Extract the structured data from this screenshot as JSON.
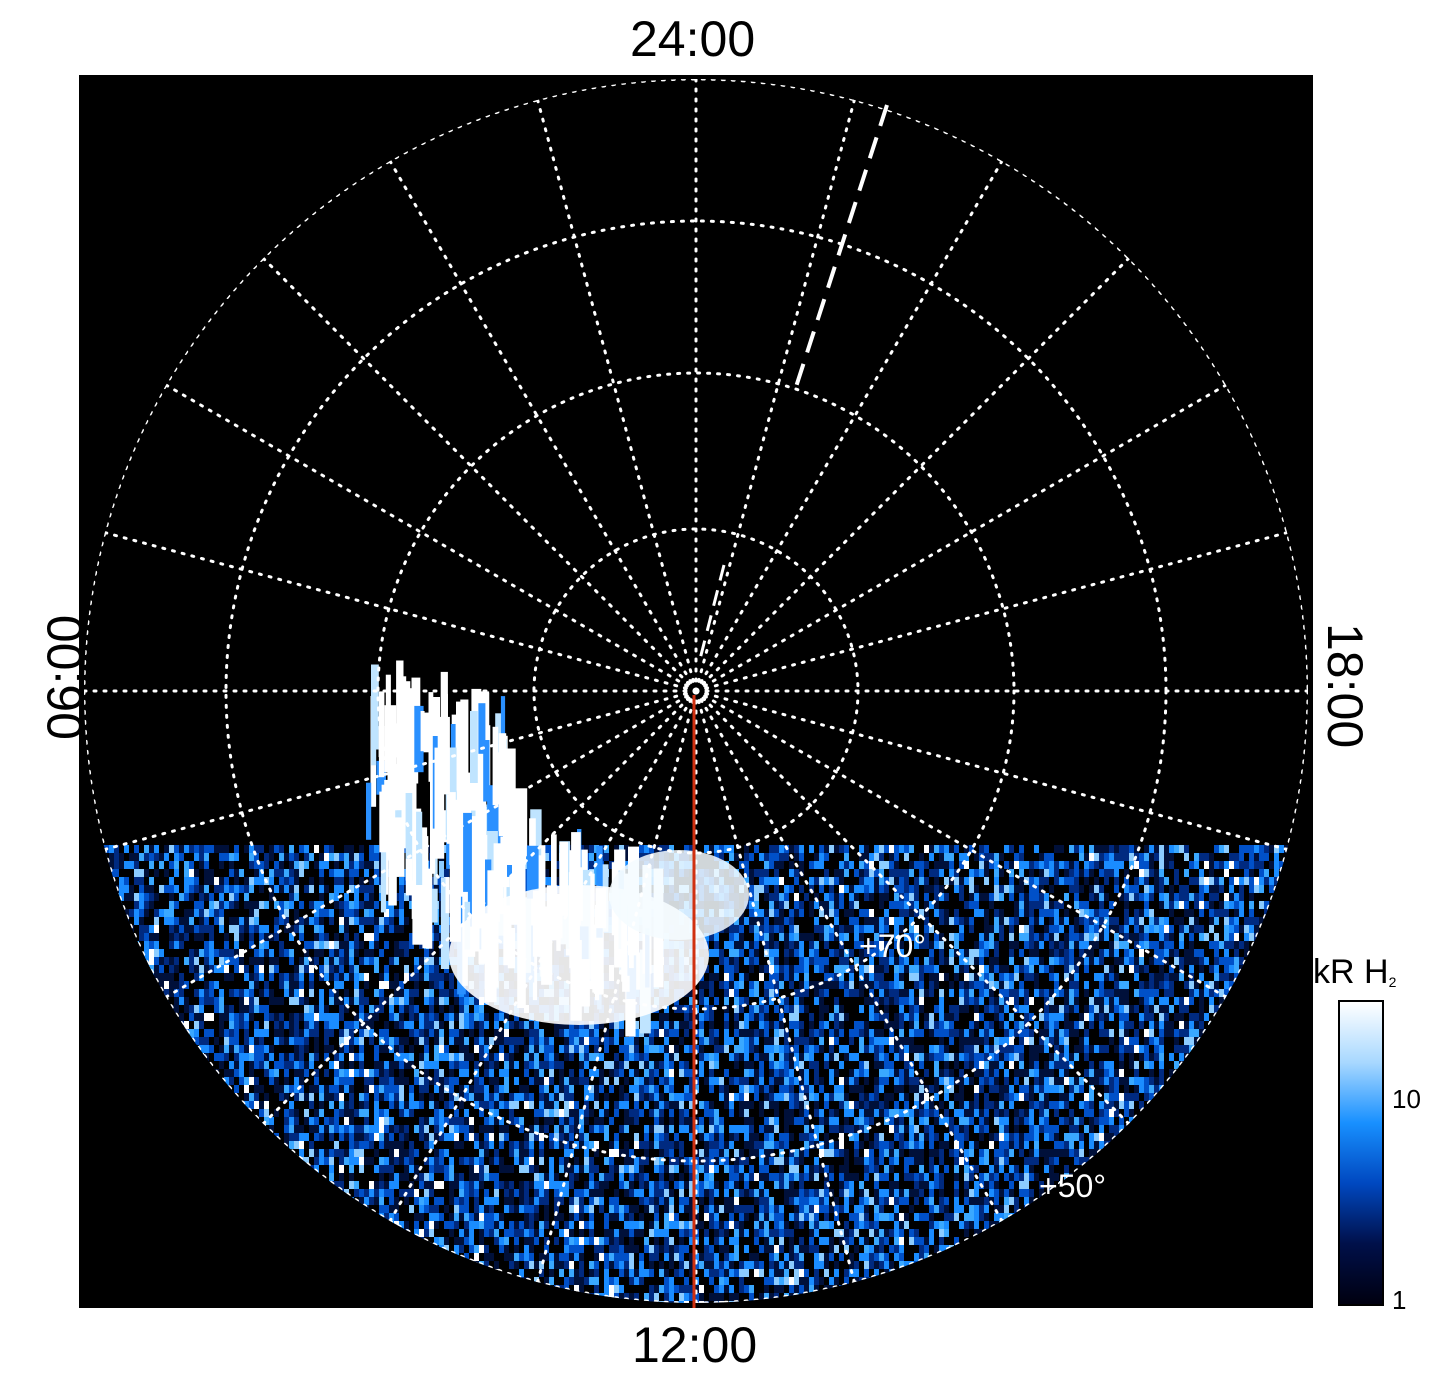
{
  "local_time_labels": {
    "top": "24:00",
    "bottom": "12:00",
    "left": "06:00",
    "right": "18:00"
  },
  "latitude_labels": {
    "inner": "+70°",
    "outer": "+50°"
  },
  "colorbar": {
    "title_main": "kR H",
    "title_sub": "2",
    "ticks": [
      "1",
      "10"
    ],
    "scale": "log",
    "range": [
      1,
      30
    ],
    "colors": [
      "#000010",
      "#00104a",
      "#0048c0",
      "#1890ff",
      "#a8d8ff",
      "#ffffff"
    ]
  },
  "overlay": {
    "dashed_line_color": "#ffffff",
    "noon_line_color": "#d03010",
    "grid_color": "#ffffff",
    "background": "#000000"
  }
}
